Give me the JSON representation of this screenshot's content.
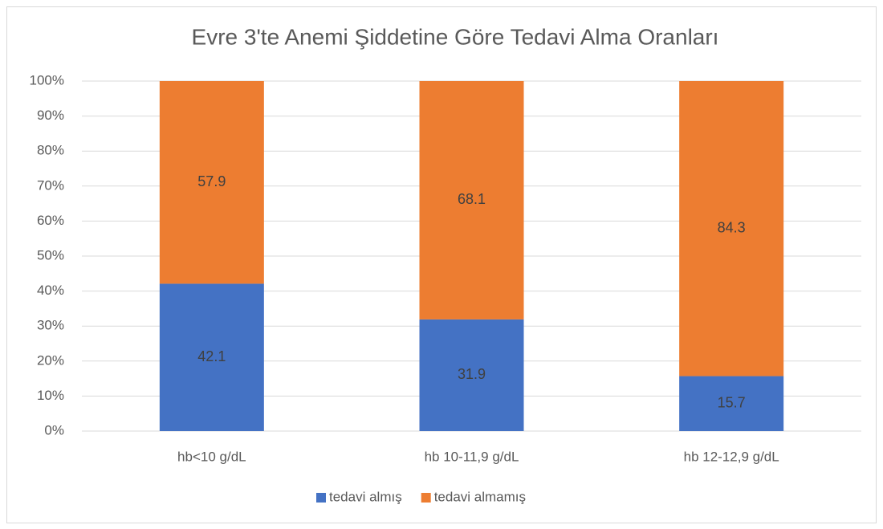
{
  "chart_data": {
    "type": "stacked_bar",
    "title": "Evre 3'te Anemi Şiddetine Göre Tedavi Alma Oranları",
    "categories": [
      "hb<10 g/dL",
      "hb 10-11,9 g/dL",
      "hb 12-12,9 g/dL"
    ],
    "series": [
      {
        "name": "tedavi almış",
        "color": "#4472c4",
        "values": [
          42.1,
          31.9,
          15.7
        ]
      },
      {
        "name": "tedavi almamış",
        "color": "#ed7d31",
        "values": [
          57.9,
          68.1,
          84.3
        ]
      }
    ],
    "ylim": [
      0,
      100
    ],
    "yticks": [
      {
        "value": 0,
        "label": "0%"
      },
      {
        "value": 10,
        "label": "10%"
      },
      {
        "value": 20,
        "label": "20%"
      },
      {
        "value": 30,
        "label": "30%"
      },
      {
        "value": 40,
        "label": "40%"
      },
      {
        "value": 50,
        "label": "50%"
      },
      {
        "value": 60,
        "label": "60%"
      },
      {
        "value": 70,
        "label": "70%"
      },
      {
        "value": 80,
        "label": "80%"
      },
      {
        "value": 90,
        "label": "90%"
      },
      {
        "value": 100,
        "label": "100%"
      }
    ],
    "grid": true,
    "legend": "bottom"
  }
}
